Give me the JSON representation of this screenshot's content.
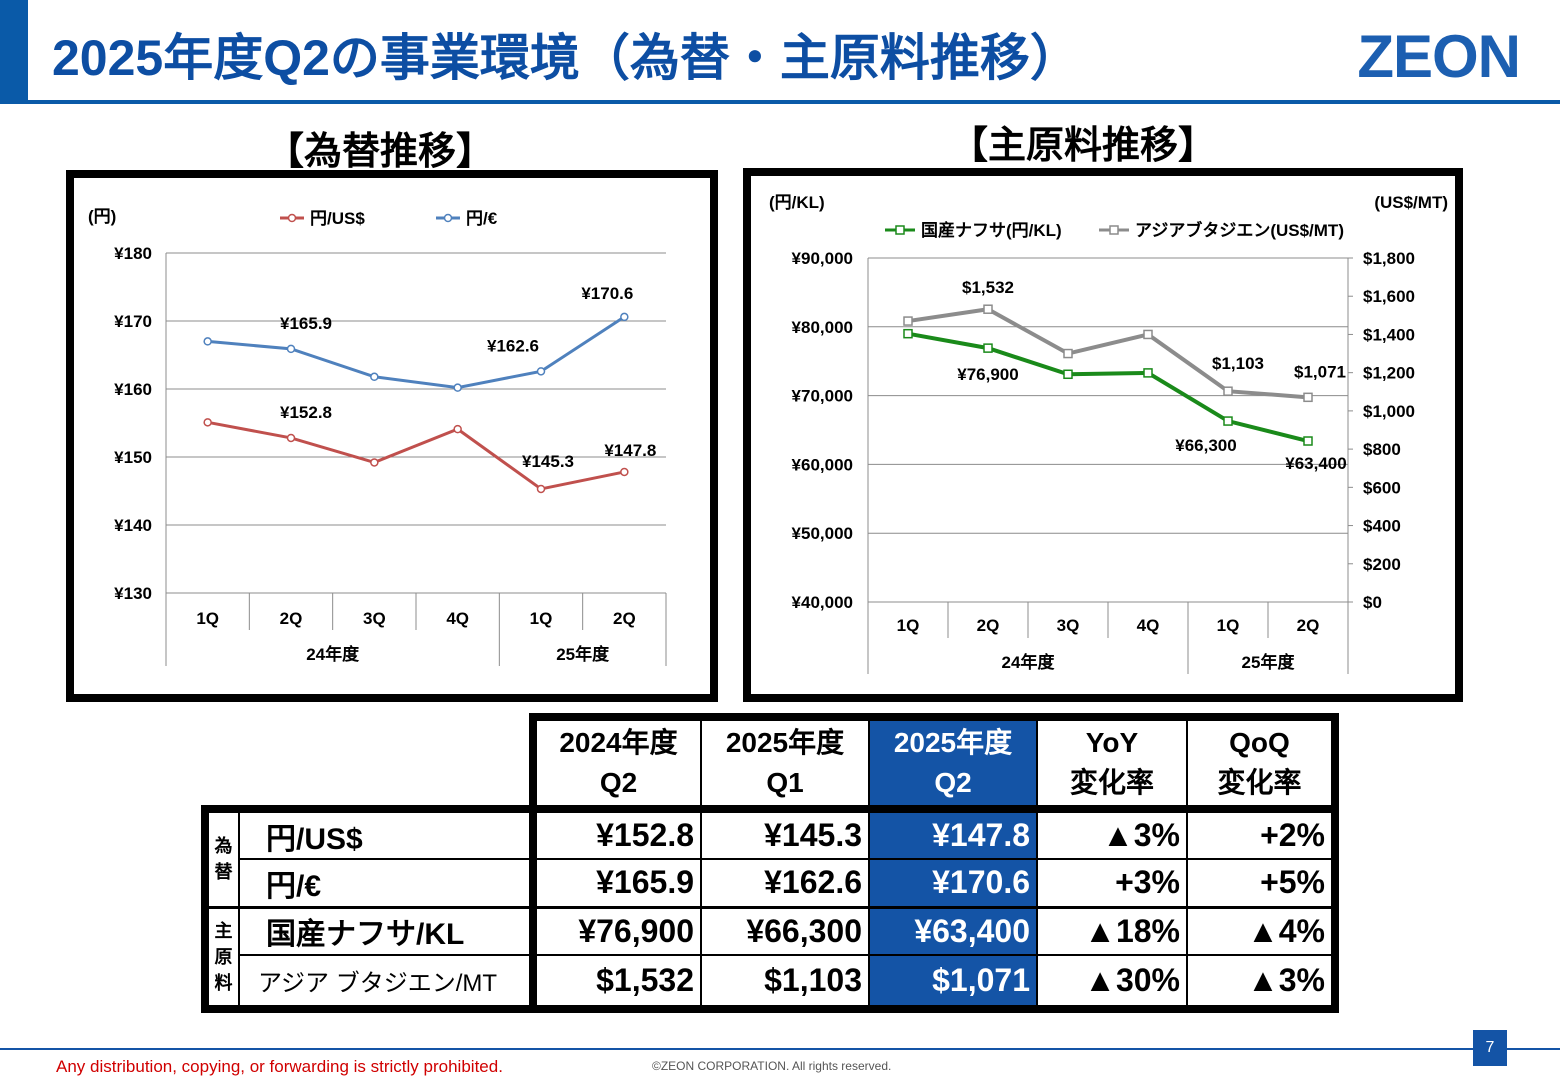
{
  "page": {
    "title": "2025年度Q2の事業環境（為替・主原料推移）",
    "logo": "ZEON",
    "page_number": "7",
    "footer_warning": "Any distribution, copying, or forwarding is strictly prohibited.",
    "footer_copyright": "©ZEON CORPORATION. All rights reserved."
  },
  "fx_section_title": "【為替推移】",
  "material_section_title": "【主原料推移】",
  "chart_data": [
    {
      "type": "line",
      "title": "【為替推移】",
      "ylabel": "(円)",
      "ylim": [
        130,
        180
      ],
      "yticks": [
        "¥180",
        "¥170",
        "¥160",
        "¥150",
        "¥140",
        "¥130"
      ],
      "categories": [
        "1Q",
        "2Q",
        "3Q",
        "4Q",
        "1Q",
        "2Q"
      ],
      "groups": [
        "24年度",
        "25年度"
      ],
      "series": [
        {
          "name": "円/US$",
          "color": "#c0504d",
          "values": [
            155.1,
            152.8,
            149.2,
            154.1,
            145.3,
            147.8
          ]
        },
        {
          "name": "円/€",
          "color": "#4f81bd",
          "values": [
            167.0,
            165.9,
            161.8,
            160.2,
            162.6,
            170.6
          ]
        }
      ],
      "labels": [
        {
          "text": "¥165.9"
        },
        {
          "text": "¥162.6"
        },
        {
          "text": "¥170.6"
        },
        {
          "text": "¥152.8"
        },
        {
          "text": "¥145.3"
        },
        {
          "text": "¥147.8"
        }
      ]
    },
    {
      "type": "line",
      "title": "【主原料推移】",
      "ylabel_left": "(円/KL)",
      "ylabel_right": "(US$/MT)",
      "ylim_left": [
        40000,
        90000
      ],
      "ylim_right": [
        0,
        1800
      ],
      "yticks_left": [
        "¥90,000",
        "¥80,000",
        "¥70,000",
        "¥60,000",
        "¥50,000",
        "¥40,000"
      ],
      "yticks_right": [
        "$1,800",
        "$1,600",
        "$1,400",
        "$1,200",
        "$1,000",
        "$800",
        "$600",
        "$400",
        "$200",
        "$0"
      ],
      "categories": [
        "1Q",
        "2Q",
        "3Q",
        "4Q",
        "1Q",
        "2Q"
      ],
      "groups": [
        "24年度",
        "25年度"
      ],
      "series": [
        {
          "name": "国産ナフサ(円/KL)",
          "color": "#1a8a1a",
          "axis": "left",
          "values": [
            79000,
            76900,
            73100,
            73300,
            66300,
            63400
          ]
        },
        {
          "name": "アジアブタジエン(US$/MT)",
          "color": "#8c8c8c",
          "axis": "right",
          "values": [
            1470,
            1532,
            1300,
            1400,
            1103,
            1071
          ]
        }
      ],
      "labels": [
        {
          "text": "$1,532"
        },
        {
          "text": "$1,103"
        },
        {
          "text": "$1,071"
        },
        {
          "text": "¥76,900"
        },
        {
          "text": "¥66,300"
        },
        {
          "text": "¥63,400"
        }
      ]
    }
  ],
  "table": {
    "headers": [
      {
        "line1": "2024年度",
        "line2": "Q2"
      },
      {
        "line1": "2025年度",
        "line2": "Q1"
      },
      {
        "line1": "2025年度",
        "line2": "Q2"
      },
      {
        "line1": "YoY",
        "line2": "変化率"
      },
      {
        "line1": "QoQ",
        "line2": "変化率"
      }
    ],
    "groups": {
      "fx": "為替",
      "material": "主原料"
    },
    "rows": [
      {
        "label": "円/US$",
        "values": [
          "¥152.8",
          "¥145.3",
          "¥147.8",
          "▲3%",
          "+2%"
        ]
      },
      {
        "label": "円/€",
        "values": [
          "¥165.9",
          "¥162.6",
          "¥170.6",
          "+3%",
          "+5%"
        ]
      },
      {
        "label": "国産ナフサ/KL",
        "values": [
          "¥76,900",
          "¥66,300",
          "¥63,400",
          "▲18%",
          "▲4%"
        ]
      },
      {
        "label": "アジア ブタジエン/MT",
        "values": [
          "$1,532",
          "$1,103",
          "$1,071",
          "▲30%",
          "▲3%"
        ]
      }
    ],
    "highlight_color": "#1454a6"
  }
}
